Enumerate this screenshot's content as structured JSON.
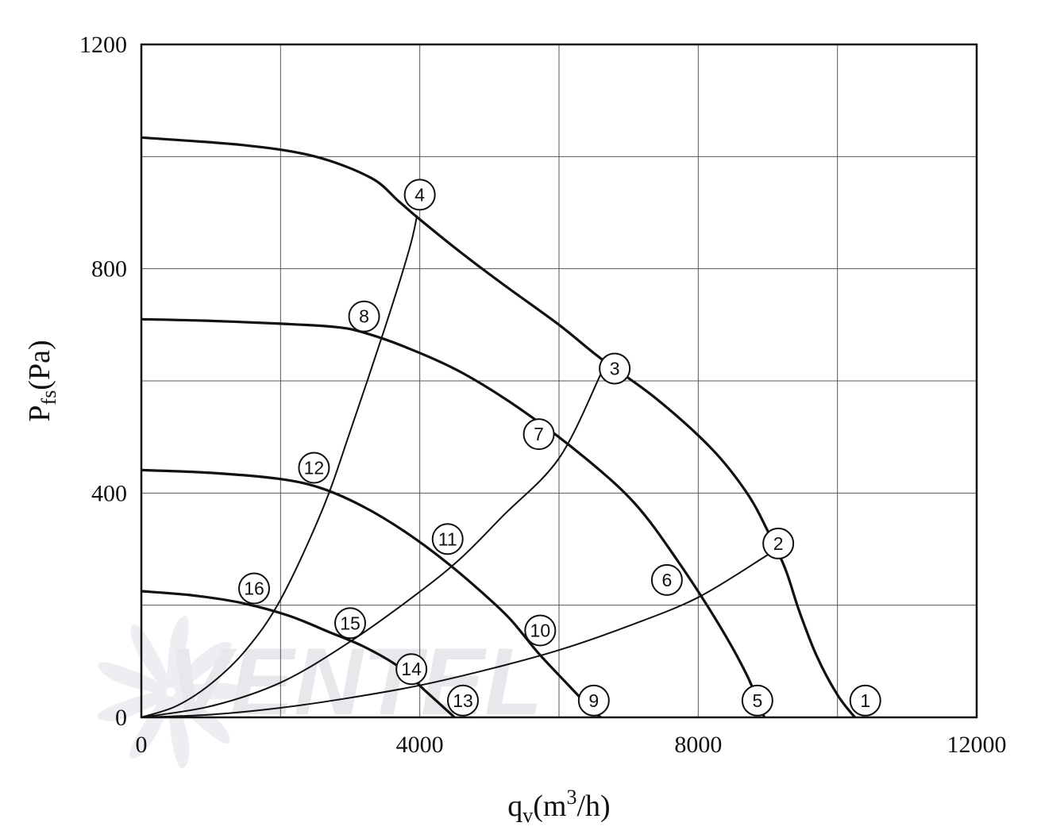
{
  "chart_data": {
    "type": "line",
    "xlabel_parts": {
      "base": "q",
      "sub": "v",
      "mid": "(m",
      "sup": "3",
      "end": "/h)"
    },
    "ylabel_parts": {
      "base": "P",
      "sub": "fs",
      "end": "(Pa)"
    },
    "xlim": [
      0,
      12000
    ],
    "ylim": [
      0,
      1200
    ],
    "xticks": [
      0,
      4000,
      8000,
      12000
    ],
    "yticks": [
      0,
      400,
      800,
      1200
    ],
    "grid": true,
    "grid_step_x": 2000,
    "grid_step_y": 200,
    "watermark": "VENTEL",
    "fan_curves": [
      {
        "points": [
          [
            0,
            1034
          ],
          [
            1500,
            1020
          ],
          [
            2500,
            1000
          ],
          [
            3300,
            962
          ],
          [
            3700,
            920
          ],
          [
            4000,
            888
          ],
          [
            4600,
            828
          ],
          [
            5200,
            772
          ],
          [
            6000,
            700
          ],
          [
            6600,
            640
          ],
          [
            7400,
            568
          ],
          [
            8200,
            478
          ],
          [
            8700,
            400
          ],
          [
            9000,
            332
          ],
          [
            9250,
            265
          ],
          [
            9450,
            190
          ],
          [
            9700,
            110
          ],
          [
            10000,
            40
          ],
          [
            10250,
            0
          ]
        ]
      },
      {
        "points": [
          [
            0,
            710
          ],
          [
            1000,
            707
          ],
          [
            2000,
            702
          ],
          [
            2800,
            696
          ],
          [
            3200,
            686
          ],
          [
            3800,
            660
          ],
          [
            4600,
            615
          ],
          [
            5500,
            545
          ],
          [
            6400,
            460
          ],
          [
            7100,
            380
          ],
          [
            7700,
            280
          ],
          [
            8300,
            165
          ],
          [
            8700,
            75
          ],
          [
            8950,
            0
          ]
        ]
      },
      {
        "points": [
          [
            0,
            441
          ],
          [
            1000,
            436
          ],
          [
            2000,
            425
          ],
          [
            2600,
            408
          ],
          [
            3200,
            375
          ],
          [
            3800,
            330
          ],
          [
            4400,
            275
          ],
          [
            4900,
            222
          ],
          [
            5300,
            175
          ],
          [
            5700,
            115
          ],
          [
            6100,
            62
          ],
          [
            6500,
            10
          ],
          [
            6600,
            0
          ]
        ]
      },
      {
        "points": [
          [
            0,
            225
          ],
          [
            700,
            218
          ],
          [
            1400,
            205
          ],
          [
            2100,
            182
          ],
          [
            2700,
            152
          ],
          [
            3200,
            126
          ],
          [
            3700,
            90
          ],
          [
            4100,
            45
          ],
          [
            4500,
            0
          ]
        ]
      }
    ],
    "system_curves": [
      {
        "points": [
          [
            0,
            0
          ],
          [
            1000,
            5
          ],
          [
            2000,
            17
          ],
          [
            3000,
            35
          ],
          [
            4000,
            57
          ],
          [
            5000,
            86
          ],
          [
            6000,
            120
          ],
          [
            7000,
            163
          ],
          [
            8000,
            214
          ],
          [
            9000,
            290
          ]
        ]
      },
      {
        "points": [
          [
            0,
            0
          ],
          [
            1000,
            20
          ],
          [
            2000,
            62
          ],
          [
            3000,
            135
          ],
          [
            4000,
            224
          ],
          [
            4600,
            285
          ],
          [
            5200,
            360
          ],
          [
            6000,
            462
          ],
          [
            6600,
            612
          ]
        ]
      },
      {
        "points": [
          [
            0,
            0
          ],
          [
            500,
            20
          ],
          [
            1000,
            60
          ],
          [
            1500,
            120
          ],
          [
            2000,
            210
          ],
          [
            2600,
            370
          ],
          [
            3000,
            510
          ],
          [
            3500,
            695
          ],
          [
            3850,
            835
          ],
          [
            3960,
            895
          ]
        ]
      }
    ],
    "markers": [
      {
        "label": "1",
        "x": 10400,
        "y": 30
      },
      {
        "label": "2",
        "x": 9150,
        "y": 310
      },
      {
        "label": "3",
        "x": 6800,
        "y": 622
      },
      {
        "label": "4",
        "x": 4000,
        "y": 932
      },
      {
        "label": "5",
        "x": 8850,
        "y": 30
      },
      {
        "label": "6",
        "x": 7550,
        "y": 245
      },
      {
        "label": "7",
        "x": 5710,
        "y": 505
      },
      {
        "label": "8",
        "x": 3200,
        "y": 715
      },
      {
        "label": "9",
        "x": 6500,
        "y": 30
      },
      {
        "label": "10",
        "x": 5730,
        "y": 155
      },
      {
        "label": "11",
        "x": 4400,
        "y": 318
      },
      {
        "label": "12",
        "x": 2480,
        "y": 445
      },
      {
        "label": "13",
        "x": 4620,
        "y": 30
      },
      {
        "label": "14",
        "x": 3880,
        "y": 86
      },
      {
        "label": "15",
        "x": 3000,
        "y": 168
      },
      {
        "label": "16",
        "x": 1620,
        "y": 230
      }
    ]
  }
}
